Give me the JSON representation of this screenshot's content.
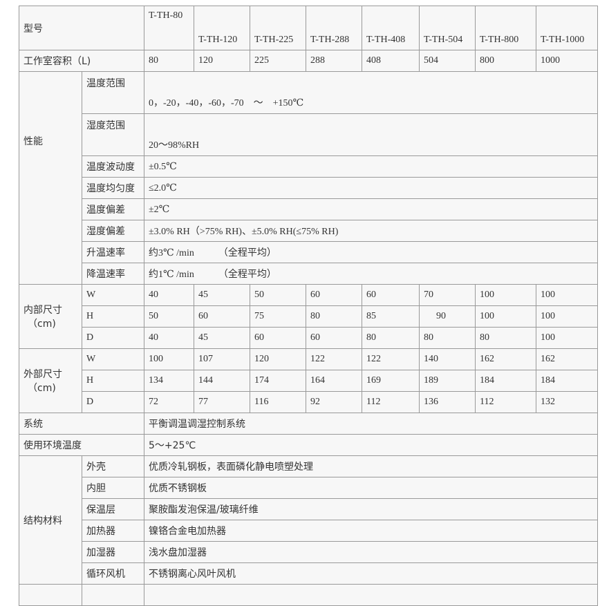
{
  "header": {
    "label": "型号",
    "models": [
      "T-TH-80",
      "T-TH-120",
      "T-TH-225",
      "T-TH-288",
      "T-TH-408",
      "T-TH-504",
      "T-TH-800",
      "T-TH-1000"
    ]
  },
  "volume": {
    "label": "工作室容积（L)",
    "values": [
      "80",
      "120",
      "225",
      "288",
      "408",
      "504",
      "800",
      "1000"
    ]
  },
  "performance": {
    "label": "性能",
    "rows": [
      {
        "label": "温度范围",
        "value": "0，-20，-40，-60，-70　～　+150℃"
      },
      {
        "label": "湿度范围",
        "value": "20～98%RH"
      },
      {
        "label": "温度波动度",
        "value": "±0.5℃"
      },
      {
        "label": "温度均匀度",
        "value": "≤2.0℃"
      },
      {
        "label": "温度偏差",
        "value": "±2℃"
      },
      {
        "label": "湿度偏差",
        "value": "±3.0% RH（>75% RH)、±5.0% RH(≤75% RH)"
      },
      {
        "label": "升温速率",
        "value": "约3℃ /min　　　（全程平均）"
      },
      {
        "label": "降温速率",
        "value": "约1℃ /min　　　（全程平均）"
      }
    ]
  },
  "inner_size": {
    "label": "内部尺寸",
    "unit": "（cm)",
    "rows": [
      {
        "dim": "W",
        "values": [
          "40",
          "45",
          "50",
          "60",
          "60",
          "70",
          "100",
          "100"
        ]
      },
      {
        "dim": "H",
        "values": [
          "50",
          "60",
          "75",
          "80",
          "85",
          "90",
          "100",
          "100"
        ]
      },
      {
        "dim": "D",
        "values": [
          "40",
          "45",
          "60",
          "60",
          "80",
          "80",
          "80",
          "100"
        ]
      }
    ]
  },
  "outer_size": {
    "label": "外部尺寸",
    "unit": "（cm)",
    "rows": [
      {
        "dim": "W",
        "values": [
          "100",
          "107",
          "120",
          "122",
          "122",
          "140",
          "162",
          "162"
        ]
      },
      {
        "dim": "H",
        "values": [
          "134",
          "144",
          "174",
          "164",
          "169",
          "189",
          "184",
          "184"
        ]
      },
      {
        "dim": "D",
        "values": [
          "72",
          "77",
          "116",
          "92",
          "112",
          "136",
          "112",
          "132"
        ]
      }
    ]
  },
  "system": {
    "label": "系统",
    "value": "平衡调温调湿控制系统"
  },
  "ambient": {
    "label": "使用环境温度",
    "value": "5～+25℃"
  },
  "materials": {
    "label": "结构材料",
    "rows": [
      {
        "label": "外壳",
        "value": "优质冷轧钢板，表面磷化静电喷塑处理"
      },
      {
        "label": "内胆",
        "value": "优质不锈钢板"
      },
      {
        "label": "保温层",
        "value": "聚胺酯发泡保温/玻璃纤维"
      },
      {
        "label": "加热器",
        "value": "镍铬合金电加热器"
      },
      {
        "label": "加湿器",
        "value": "浅水盘加湿器"
      },
      {
        "label": "循环风机",
        "value": "不锈钢离心风叶风机"
      }
    ]
  }
}
